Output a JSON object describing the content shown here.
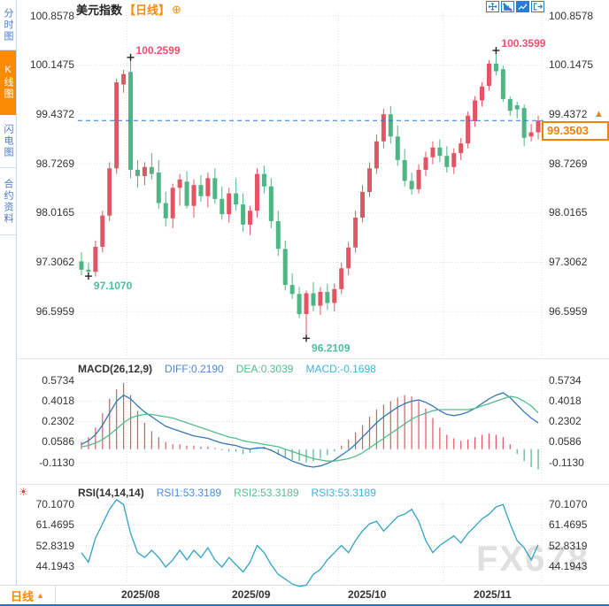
{
  "header": {
    "title_symbol": "美元指数",
    "title_period": "【日线】",
    "zoom_icon": "⊕",
    "toolbar_icons": [
      "pan-icon",
      "axis-scale-icon",
      "chart-style-icon",
      "exit-icon"
    ]
  },
  "sidebar": {
    "tabs": [
      {
        "label": "分时图",
        "active": false
      },
      {
        "label": "K线图",
        "active": true
      },
      {
        "label": "闪电图",
        "active": false
      },
      {
        "label": "合约资料",
        "active": false
      }
    ]
  },
  "price_box": {
    "label": "99.3503",
    "arrow": "▲"
  },
  "bottom_bar": {
    "period_selector": {
      "label": "日线",
      "arrow": "▲"
    },
    "dates": [
      "2025/08",
      "2025/09",
      "2025/10",
      "2025/11"
    ]
  },
  "watermark": "FX678",
  "colors": {
    "up": "#e25565",
    "down": "#4eb585",
    "accent_orange": "#fb8b05",
    "diff_line": "#3577b5",
    "dea_line": "#53bd8e",
    "rsi_line": "#2fa3c6",
    "grid": "#e6d9d9",
    "dashed_line": "#1e7ae0",
    "label_high": "#f0506e",
    "label_low": "#4fbf9f",
    "link_blue": "#4a89dc",
    "cyan": "#3eb3dc",
    "axis_text": "#333333"
  },
  "chart_data": [
    {
      "type": "candlestick",
      "title": "美元指数 日线 (US Dollar Index, daily)",
      "y_ticks": [
        "100.8578",
        "100.1475",
        "99.4372",
        "98.7269",
        "98.0165",
        "97.3062",
        "96.5959"
      ],
      "x_ticks": [
        "2025/08",
        "2025/09",
        "2025/10",
        "2025/11"
      ],
      "month_boundary_indices": [
        7,
        22,
        37,
        52
      ],
      "current_price": {
        "label": "99.3503",
        "value": 99.3503
      },
      "annotations": [
        {
          "label": "100.2599",
          "index": 7,
          "price": 100.2599,
          "kind": "high"
        },
        {
          "label": "100.3599",
          "index": 59,
          "price": 100.3599,
          "kind": "high"
        },
        {
          "label": "97.1070",
          "index": 1,
          "price": 97.107,
          "kind": "low"
        },
        {
          "label": "96.2109",
          "index": 32,
          "price": 96.2109,
          "kind": "low"
        }
      ],
      "candles": [
        [
          97.32,
          97.45,
          97.12,
          97.2
        ],
        [
          97.2,
          97.3,
          97.107,
          97.17
        ],
        [
          97.17,
          97.62,
          97.1,
          97.53
        ],
        [
          97.53,
          98.05,
          97.45,
          97.98
        ],
        [
          97.98,
          98.75,
          97.9,
          98.66
        ],
        [
          98.66,
          99.95,
          98.58,
          99.9
        ],
        [
          99.87,
          100.08,
          99.75,
          100.02
        ],
        [
          100.05,
          100.2599,
          98.52,
          98.64
        ],
        [
          98.64,
          98.78,
          98.38,
          98.55
        ],
        [
          98.55,
          98.75,
          98.42,
          98.68
        ],
        [
          98.68,
          98.88,
          98.5,
          98.58
        ],
        [
          98.6,
          98.78,
          98.08,
          98.16
        ],
        [
          98.16,
          98.32,
          97.82,
          97.94
        ],
        [
          97.94,
          98.44,
          97.8,
          98.38
        ],
        [
          98.38,
          98.58,
          98.12,
          98.5
        ],
        [
          98.47,
          98.62,
          98.08,
          98.12
        ],
        [
          98.12,
          98.5,
          97.95,
          98.42
        ],
        [
          98.42,
          98.56,
          98.18,
          98.26
        ],
        [
          98.26,
          98.6,
          98.1,
          98.52
        ],
        [
          98.52,
          98.66,
          98.15,
          98.22
        ],
        [
          98.22,
          98.4,
          97.92,
          98.0
        ],
        [
          98.0,
          98.38,
          97.88,
          98.3
        ],
        [
          98.3,
          98.52,
          98.05,
          98.14
        ],
        [
          98.14,
          98.3,
          97.75,
          97.85
        ],
        [
          97.85,
          98.12,
          97.7,
          98.05
        ],
        [
          98.05,
          98.66,
          97.95,
          98.58
        ],
        [
          98.58,
          98.7,
          98.3,
          98.4
        ],
        [
          98.4,
          98.52,
          97.8,
          97.9
        ],
        [
          97.9,
          98.05,
          97.4,
          97.5
        ],
        [
          97.5,
          97.62,
          96.9,
          96.98
        ],
        [
          96.98,
          97.15,
          96.78,
          96.85
        ],
        [
          96.85,
          96.95,
          96.5,
          96.56
        ],
        [
          96.56,
          96.9,
          96.2109,
          96.86
        ],
        [
          96.86,
          97.02,
          96.6,
          96.68
        ],
        [
          96.68,
          96.95,
          96.55,
          96.88
        ],
        [
          96.88,
          97.0,
          96.62,
          96.72
        ],
        [
          96.72,
          97.0,
          96.6,
          96.92
        ],
        [
          96.92,
          97.3,
          96.85,
          97.22
        ],
        [
          97.22,
          97.6,
          97.12,
          97.52
        ],
        [
          97.52,
          98.05,
          97.45,
          97.95
        ],
        [
          97.95,
          98.42,
          97.88,
          98.32
        ],
        [
          98.32,
          98.75,
          98.25,
          98.66
        ],
        [
          98.66,
          99.15,
          98.58,
          99.05
        ],
        [
          99.05,
          99.52,
          98.95,
          99.44
        ],
        [
          99.44,
          99.56,
          99.02,
          99.12
        ],
        [
          99.12,
          99.28,
          98.7,
          98.78
        ],
        [
          98.78,
          98.94,
          98.4,
          98.48
        ],
        [
          98.48,
          98.6,
          98.28,
          98.36
        ],
        [
          98.36,
          98.72,
          98.3,
          98.64
        ],
        [
          98.64,
          98.9,
          98.55,
          98.82
        ],
        [
          98.82,
          99.05,
          98.72,
          98.96
        ],
        [
          98.96,
          99.08,
          98.75,
          98.84
        ],
        [
          98.84,
          98.98,
          98.6,
          98.68
        ],
        [
          98.68,
          98.95,
          98.58,
          98.88
        ],
        [
          98.88,
          99.1,
          98.78,
          99.02
        ],
        [
          99.02,
          99.48,
          98.95,
          99.42
        ],
        [
          99.34,
          99.7,
          99.26,
          99.64
        ],
        [
          99.64,
          99.9,
          99.55,
          99.84
        ],
        [
          99.85,
          100.22,
          99.78,
          100.17
        ],
        [
          100.17,
          100.3599,
          100.0,
          100.06
        ],
        [
          100.09,
          100.14,
          99.62,
          99.66
        ],
        [
          99.66,
          99.7,
          99.42,
          99.49
        ],
        [
          99.57,
          99.62,
          99.38,
          99.51
        ],
        [
          99.53,
          99.58,
          98.98,
          99.1
        ],
        [
          99.12,
          99.3,
          99.05,
          99.18
        ],
        [
          99.18,
          99.42,
          99.08,
          99.3503
        ]
      ]
    },
    {
      "type": "macd",
      "label": "MACD(26,12,9)",
      "diff_label": "DIFF:0.2190",
      "dea_label": "DEA:0.3039",
      "macd_label": "MACD:-0.1698",
      "y_ticks": [
        "0.5734",
        "0.4018",
        "0.2302",
        "0.0586",
        "-0.1130"
      ],
      "diff": [
        0.04,
        0.07,
        0.12,
        0.2,
        0.3,
        0.4,
        0.45,
        0.42,
        0.36,
        0.31,
        0.27,
        0.23,
        0.19,
        0.17,
        0.15,
        0.13,
        0.11,
        0.1,
        0.09,
        0.07,
        0.05,
        0.04,
        0.03,
        0.01,
        0.0,
        0.01,
        0.01,
        -0.01,
        -0.04,
        -0.07,
        -0.1,
        -0.12,
        -0.14,
        -0.15,
        -0.14,
        -0.12,
        -0.09,
        -0.05,
        -0.01,
        0.04,
        0.1,
        0.16,
        0.22,
        0.27,
        0.31,
        0.35,
        0.38,
        0.4,
        0.41,
        0.39,
        0.36,
        0.32,
        0.29,
        0.28,
        0.29,
        0.31,
        0.34,
        0.38,
        0.42,
        0.45,
        0.47,
        0.43,
        0.37,
        0.31,
        0.26,
        0.219
      ],
      "dea": [
        0.02,
        0.03,
        0.05,
        0.08,
        0.12,
        0.17,
        0.22,
        0.26,
        0.28,
        0.29,
        0.29,
        0.28,
        0.27,
        0.26,
        0.24,
        0.22,
        0.2,
        0.18,
        0.16,
        0.14,
        0.12,
        0.1,
        0.09,
        0.07,
        0.06,
        0.05,
        0.04,
        0.03,
        0.02,
        0.0,
        -0.02,
        -0.04,
        -0.06,
        -0.08,
        -0.09,
        -0.1,
        -0.1,
        -0.09,
        -0.08,
        -0.06,
        -0.03,
        0.01,
        0.05,
        0.09,
        0.13,
        0.17,
        0.21,
        0.25,
        0.28,
        0.3,
        0.32,
        0.33,
        0.33,
        0.33,
        0.33,
        0.33,
        0.34,
        0.36,
        0.38,
        0.4,
        0.42,
        0.44,
        0.43,
        0.4,
        0.36,
        0.3039
      ],
      "hist": [
        0.06,
        0.1,
        0.18,
        0.3,
        0.42,
        0.5,
        0.55,
        0.45,
        0.32,
        0.22,
        0.15,
        0.1,
        0.06,
        0.04,
        0.04,
        0.03,
        0.03,
        0.02,
        0.02,
        0.01,
        -0.01,
        -0.02,
        -0.02,
        -0.04,
        -0.03,
        0.01,
        0.02,
        -0.01,
        -0.05,
        -0.07,
        -0.09,
        -0.1,
        -0.11,
        -0.1,
        -0.08,
        -0.05,
        -0.02,
        0.03,
        0.08,
        0.14,
        0.2,
        0.27,
        0.33,
        0.37,
        0.4,
        0.43,
        0.45,
        0.44,
        0.4,
        0.34,
        0.26,
        0.18,
        0.12,
        0.09,
        0.07,
        0.08,
        0.1,
        0.12,
        0.13,
        0.12,
        0.1,
        0.04,
        -0.04,
        -0.1,
        -0.15,
        -0.1698
      ]
    },
    {
      "type": "line",
      "label": "RSI(14,14,14)",
      "rsi1_label": "RSI1:53.3189",
      "rsi2_label": "RSI2:53.3189",
      "rsi3_label": "RSI3:53.3189",
      "icon": "☀",
      "y_ticks": [
        "70.1070",
        "61.4695",
        "52.8319",
        "44.1943"
      ],
      "values": [
        50,
        46,
        56,
        62,
        68,
        72,
        70,
        58,
        50,
        48,
        51,
        48,
        44,
        47,
        51,
        47,
        51,
        48,
        52,
        47,
        44,
        48,
        45,
        42,
        46,
        53,
        50,
        45,
        41,
        39,
        37,
        36,
        36.5,
        41,
        43,
        47,
        50,
        53,
        50,
        55,
        59,
        62,
        63,
        59,
        62,
        65,
        66,
        68,
        63,
        55,
        50,
        53,
        55,
        57,
        54,
        58,
        61,
        64,
        66,
        69,
        70,
        62,
        55,
        52,
        47,
        53.3189
      ]
    }
  ]
}
